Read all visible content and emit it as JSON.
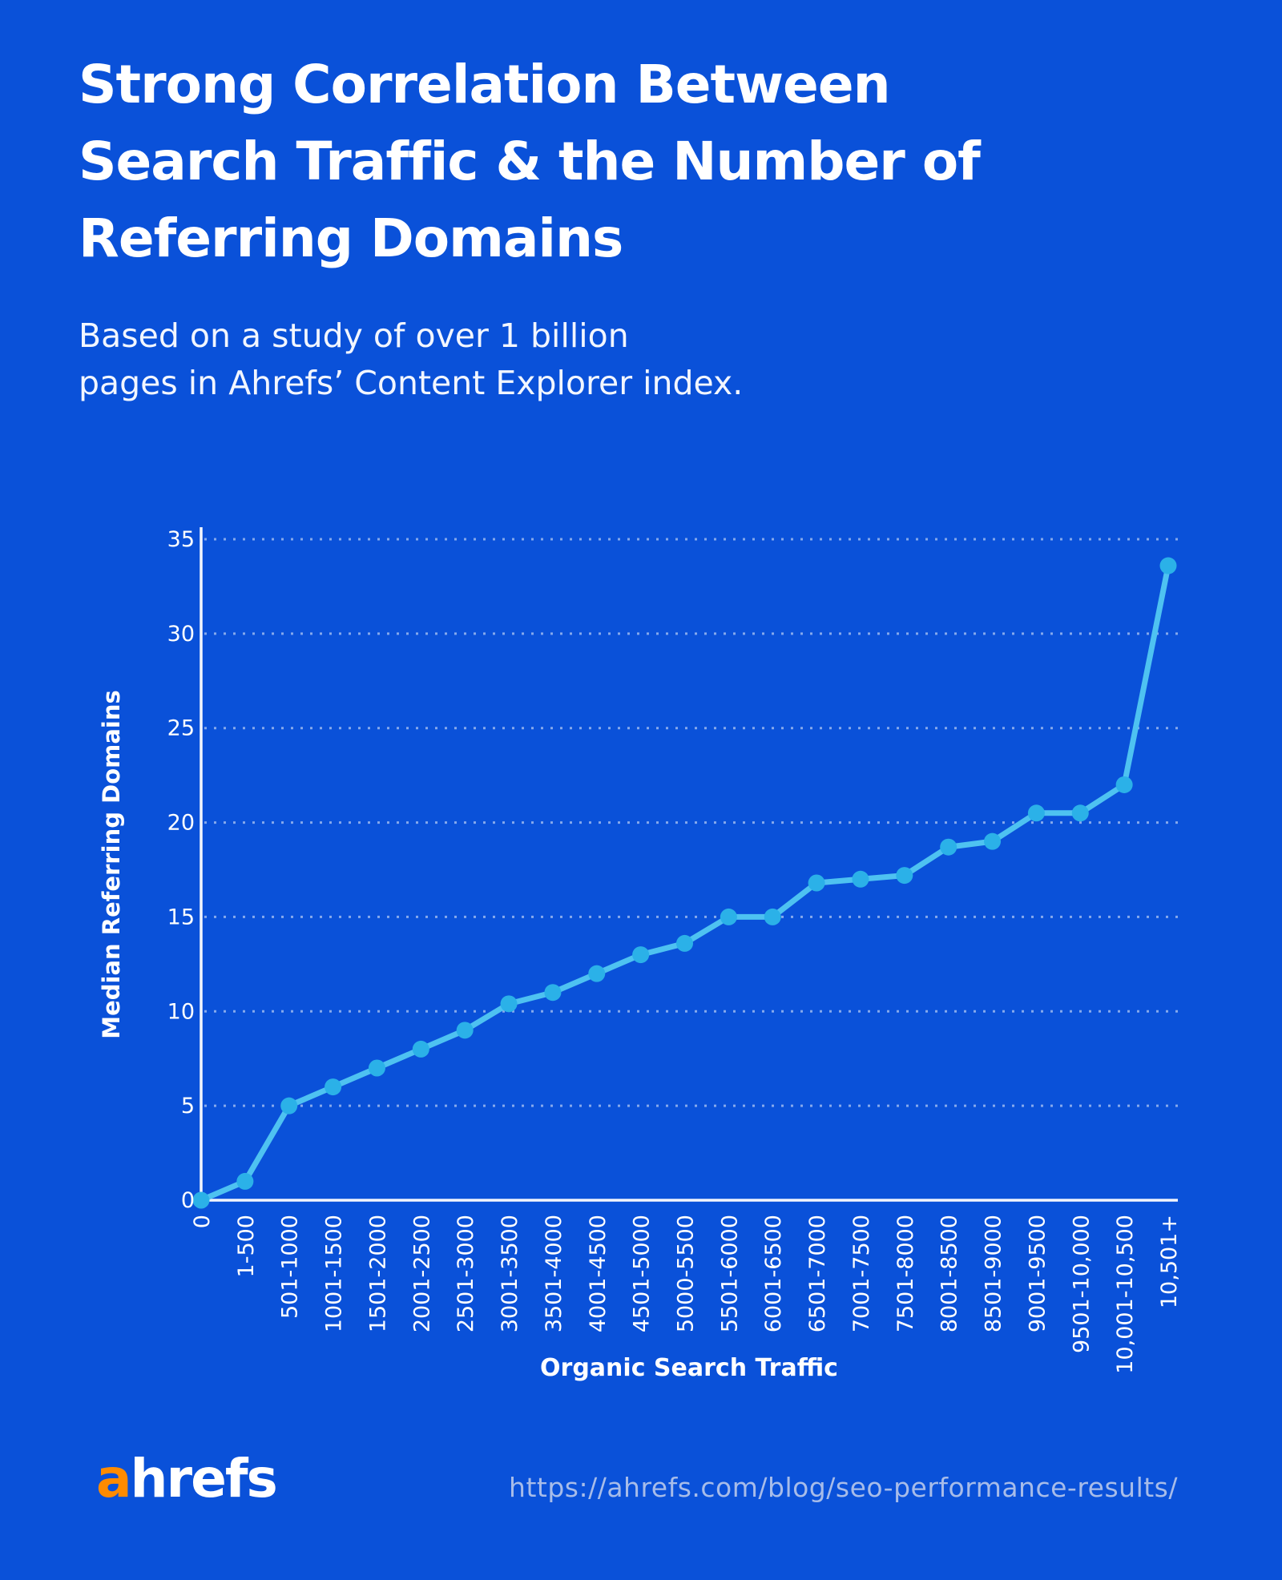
{
  "header": {
    "title_lines": [
      "Strong Correlation Between",
      "Search Traffic & the Number of",
      "Referring Domains"
    ],
    "subtitle_lines": [
      "Based on a study of over 1 billion",
      "pages in Ahrefs’ Content Explorer index."
    ]
  },
  "chart_data": {
    "type": "line",
    "categories": [
      "0",
      "1-500",
      "501-1000",
      "1001-1500",
      "1501-2000",
      "2001-2500",
      "2501-3000",
      "3001-3500",
      "3501-4000",
      "4001-4500",
      "4501-5000",
      "5000-5500",
      "5501-6000",
      "6001-6500",
      "6501-7000",
      "7001-7500",
      "7501-8000",
      "8001-8500",
      "8501-9000",
      "9001-9500",
      "9501-10,000",
      "10,001-10,500",
      "10,501+"
    ],
    "values": [
      0,
      1,
      5,
      6,
      7,
      8,
      9,
      10.4,
      11,
      12,
      13,
      13.6,
      15,
      15,
      16.8,
      17,
      17.2,
      18.7,
      19,
      20.5,
      20.5,
      22,
      33.6
    ],
    "xlabel": "Organic Search Traffic",
    "ylabel": "Median Referring Domains",
    "yticks": [
      0,
      5,
      10,
      15,
      20,
      25,
      30,
      35
    ],
    "ylim": [
      0,
      35
    ],
    "grid": "horizontal-dotted",
    "legend": "none"
  },
  "colors": {
    "background": "#0A51D9",
    "line": "#4EC2F1",
    "dot": "#2BB1E8",
    "axis": "#F2F5FD",
    "grid": "#C9D9F7",
    "text": "#FFFFFF",
    "url": "#A7BCE9",
    "logo_orange": "#FF8B00"
  },
  "footer": {
    "logo_a": "a",
    "logo_rest": "hrefs",
    "url": "https://ahrefs.com/blog/seo-performance-results/"
  }
}
